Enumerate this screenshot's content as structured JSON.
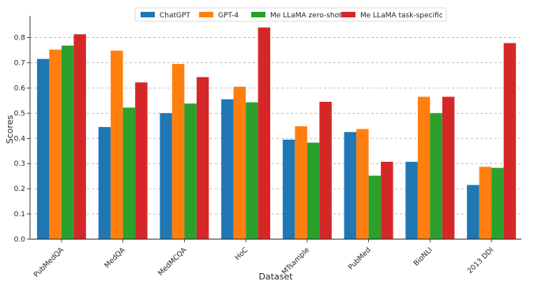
{
  "chart_data": {
    "type": "bar",
    "title": "",
    "xlabel": "Dataset",
    "ylabel": "Scores",
    "ylim": [
      0,
      0.88
    ],
    "yticks": [
      "0.0",
      "0.1",
      "0.2",
      "0.3",
      "0.4",
      "0.5",
      "0.6",
      "0.7",
      "0.8"
    ],
    "categories": [
      "PubMedQA",
      "MedQA",
      "MedMCQA",
      "HoC",
      "MTsample",
      "PubMed",
      "BioNLI",
      "2013 DDI"
    ],
    "grid": "horizontal dashed",
    "legend_position": "top-center",
    "series": [
      {
        "name": "ChatGPT",
        "color": "#1f77b4",
        "values": [
          0.715,
          0.445,
          0.5,
          0.555,
          0.395,
          0.425,
          0.307,
          0.215
        ]
      },
      {
        "name": "GPT-4",
        "color": "#ff7f0e",
        "values": [
          0.752,
          0.748,
          0.695,
          0.605,
          0.448,
          0.437,
          0.565,
          0.287
        ]
      },
      {
        "name": "Me LLaMA zero-shot",
        "color": "#2ca02c",
        "values": [
          0.768,
          0.522,
          0.538,
          0.543,
          0.383,
          0.252,
          0.5,
          0.283
        ]
      },
      {
        "name": "Me LLaMA task-specific",
        "color": "#d62728",
        "values": [
          0.813,
          0.622,
          0.643,
          0.84,
          0.545,
          0.307,
          0.565,
          0.778
        ]
      }
    ]
  }
}
